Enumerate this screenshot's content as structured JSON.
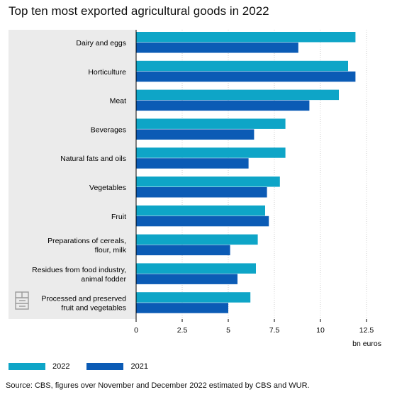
{
  "title": "Top ten most exported agricultural goods in 2022",
  "chart_data": {
    "type": "bar",
    "orientation": "horizontal",
    "categories": [
      [
        "Dairy and eggs"
      ],
      [
        "Horticulture"
      ],
      [
        "Meat"
      ],
      [
        "Beverages"
      ],
      [
        "Natural fats and oils"
      ],
      [
        "Vegetables"
      ],
      [
        "Fruit"
      ],
      [
        "Preparations of cereals,",
        "flour, milk"
      ],
      [
        "Residues from food industry,",
        "animal fodder"
      ],
      [
        "Processed and preserved",
        "fruit and vegetables"
      ]
    ],
    "series": [
      {
        "name": "2022",
        "color": "#0ea5c7",
        "values": [
          11.9,
          11.5,
          11.0,
          8.1,
          8.1,
          7.8,
          7.0,
          6.6,
          6.5,
          6.2
        ]
      },
      {
        "name": "2021",
        "color": "#0b5bb5",
        "values": [
          8.8,
          11.9,
          9.4,
          6.4,
          6.1,
          7.1,
          7.2,
          5.1,
          5.5,
          5.0
        ]
      }
    ],
    "xticks": [
      "0",
      "2.5",
      "5",
      "7.5",
      "10",
      "12.5"
    ],
    "xlim": [
      0,
      12.5
    ],
    "xlabel": "bn euros",
    "grid": true,
    "legend_position": "bottom-left"
  },
  "source": "Source: CBS, figures over November and December 2022 estimated by CBS and WUR.",
  "colors": {
    "panel": "#ebebeb",
    "axis": "#000000",
    "grid": "#cfcfcf",
    "logo": "#9a9a9a"
  },
  "icons": {
    "logo": "cbs-logo-icon"
  }
}
